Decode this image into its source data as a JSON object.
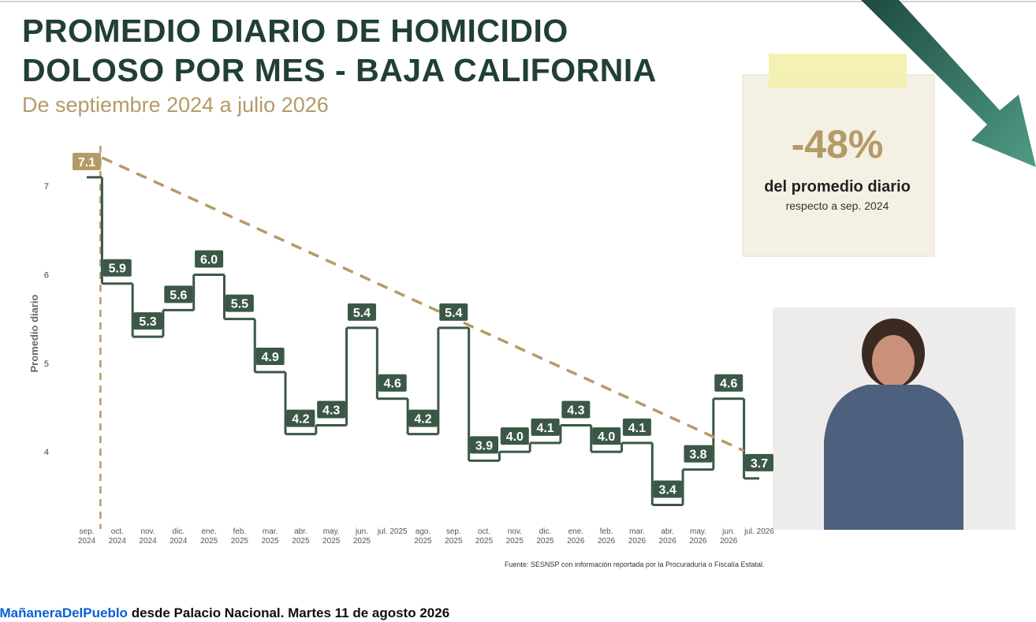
{
  "chart_data": {
    "type": "step",
    "title": [
      "PROMEDIO DIARIO DE HOMICIDIO",
      "DOLOSO POR MES - BAJA CALIFORNIA"
    ],
    "subtitle": "De septiembre 2024 a julio 2026",
    "y_label": "Promedio diario",
    "source": "Fuente: SESNSP con información reportada por la Procuraduría o Fiscalía Estatal.",
    "categories": [
      "sep. 2024",
      "oct. 2024",
      "nov. 2024",
      "dic. 2024",
      "ene. 2025",
      "feb. 2025",
      "mar. 2025",
      "abr. 2025",
      "may. 2025",
      "jun. 2025",
      "jul. 2025",
      "ago. 2025",
      "sep. 2025",
      "oct. 2025",
      "nov. 2025",
      "dic. 2025",
      "ene. 2026",
      "feb. 2026",
      "mar. 2026",
      "abr. 2026",
      "may. 2026",
      "jun. 2026",
      "jul. 2026"
    ],
    "values": [
      7.1,
      5.9,
      5.3,
      5.6,
      6.0,
      5.5,
      4.9,
      4.2,
      4.3,
      5.4,
      4.6,
      4.2,
      5.4,
      3.9,
      4.0,
      4.1,
      4.3,
      4.0,
      4.1,
      3.4,
      3.8,
      4.6,
      3.7
    ],
    "value_labels": [
      "7.1",
      "5.9",
      "5.3",
      "5.6",
      "6.0",
      "5.5",
      "4.9",
      "4.2",
      "4.3",
      "5.4",
      "4.6",
      "4.2",
      "5.4",
      "3.9",
      "4.0",
      "4.1",
      "4.3",
      "4.0",
      "4.1",
      "3.4",
      "3.8",
      "4.6",
      "3.7"
    ],
    "color": "#3b5846",
    "first_label_color": "#b49a67",
    "trend_color": "#b49a67",
    "ylim": [
      3.2,
      7.5
    ],
    "yticks": [
      4,
      5,
      6,
      7
    ]
  },
  "callout": {
    "value": "-48%",
    "line1": "del promedio diario",
    "line2": "respecto a sep. 2024"
  },
  "caption": {
    "hashtag": "#MañaneraDelPueblo",
    "text": "desde Palacio Nacional. Martes 11 de agosto 2026"
  }
}
